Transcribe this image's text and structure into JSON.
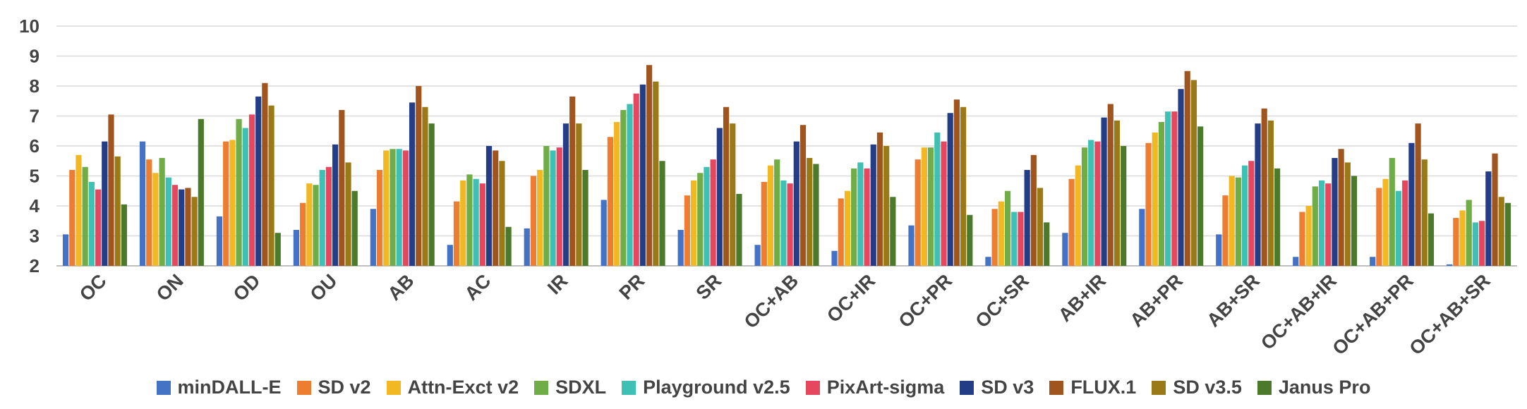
{
  "chart_data": {
    "type": "bar",
    "title": "",
    "xlabel": "",
    "ylabel": "",
    "ylim": [
      2,
      10
    ],
    "yticks": [
      2,
      3,
      4,
      5,
      6,
      7,
      8,
      9,
      10
    ],
    "grid": true,
    "legend_position": "bottom",
    "categories": [
      "OC",
      "ON",
      "OD",
      "OU",
      "AB",
      "AC",
      "IR",
      "PR",
      "SR",
      "OC+AB",
      "OC+IR",
      "OC+PR",
      "OC+SR",
      "AB+IR",
      "AB+PR",
      "AB+SR",
      "OC+AB+IR",
      "OC+AB+PR",
      "OC+AB+SR"
    ],
    "series": [
      {
        "name": "minDALL-E",
        "color": "#4472C4",
        "values": [
          3.05,
          6.15,
          3.65,
          3.2,
          3.9,
          2.7,
          3.25,
          4.2,
          3.2,
          2.7,
          2.5,
          3.35,
          2.3,
          3.1,
          3.9,
          3.05,
          2.3,
          2.3,
          2.05
        ]
      },
      {
        "name": "SD v2",
        "color": "#ED7D31",
        "values": [
          5.2,
          5.55,
          6.15,
          4.1,
          5.2,
          4.15,
          5.0,
          6.3,
          4.35,
          4.8,
          4.25,
          5.55,
          3.9,
          4.9,
          6.1,
          4.35,
          3.8,
          4.6,
          3.6
        ]
      },
      {
        "name": "Attn-Exct v2",
        "color": "#F2B824",
        "values": [
          5.7,
          5.1,
          6.2,
          4.75,
          5.85,
          4.85,
          5.2,
          6.8,
          4.85,
          5.35,
          4.5,
          5.95,
          4.15,
          5.35,
          6.45,
          5.0,
          4.0,
          4.9,
          3.85
        ]
      },
      {
        "name": "SDXL",
        "color": "#70AD47",
        "values": [
          5.3,
          5.6,
          6.9,
          4.7,
          5.9,
          5.05,
          6.0,
          7.2,
          5.1,
          5.55,
          5.25,
          5.95,
          4.5,
          5.95,
          6.8,
          4.95,
          4.65,
          5.6,
          4.2
        ]
      },
      {
        "name": "Playground v2.5",
        "color": "#3FC0B5",
        "values": [
          4.8,
          4.95,
          6.6,
          5.2,
          5.9,
          4.9,
          5.85,
          7.4,
          5.3,
          4.85,
          5.45,
          6.45,
          3.8,
          6.2,
          7.15,
          5.35,
          4.85,
          4.5,
          3.45
        ]
      },
      {
        "name": "PixArt-sigma",
        "color": "#E5475E",
        "values": [
          4.55,
          4.7,
          7.05,
          5.3,
          5.85,
          4.75,
          5.95,
          7.75,
          5.55,
          4.75,
          5.25,
          6.15,
          3.8,
          6.15,
          7.15,
          5.5,
          4.75,
          4.85,
          3.5
        ]
      },
      {
        "name": "SD v3",
        "color": "#233D86",
        "values": [
          6.15,
          4.55,
          7.65,
          6.05,
          7.45,
          6.0,
          6.75,
          8.05,
          6.6,
          6.15,
          6.05,
          7.1,
          5.2,
          6.95,
          7.9,
          6.75,
          5.6,
          6.1,
          5.15
        ]
      },
      {
        "name": "FLUX.1",
        "color": "#A0541E",
        "values": [
          7.05,
          4.6,
          8.1,
          7.2,
          8.0,
          5.85,
          7.65,
          8.7,
          7.3,
          6.7,
          6.45,
          7.55,
          5.7,
          7.4,
          8.5,
          7.25,
          5.9,
          6.75,
          5.75
        ]
      },
      {
        "name": "SD v3.5",
        "color": "#9A7A16",
        "values": [
          5.65,
          4.3,
          7.35,
          5.45,
          7.3,
          5.5,
          6.75,
          8.15,
          6.75,
          5.6,
          6.0,
          7.3,
          4.6,
          6.85,
          8.2,
          6.85,
          5.45,
          5.55,
          4.3
        ]
      },
      {
        "name": "Janus Pro",
        "color": "#4B7A2B",
        "values": [
          4.05,
          6.9,
          3.1,
          4.5,
          6.75,
          3.3,
          5.2,
          5.5,
          4.4,
          5.4,
          4.3,
          3.7,
          3.45,
          6.0,
          6.65,
          5.25,
          5.0,
          3.75,
          4.1
        ]
      }
    ]
  }
}
